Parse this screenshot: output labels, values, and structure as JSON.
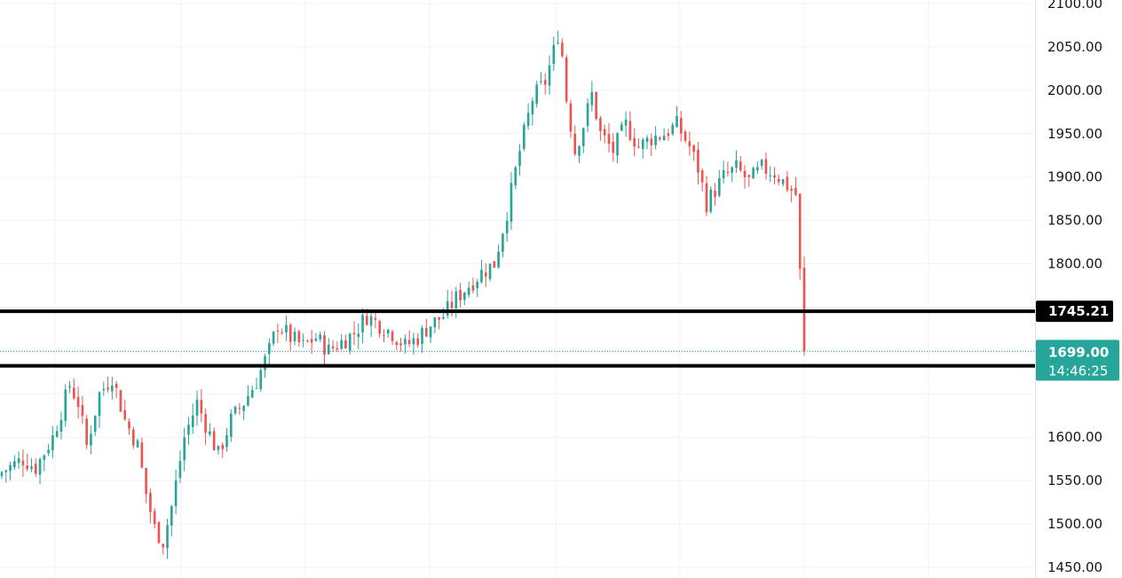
{
  "chart_data": {
    "type": "candlestick",
    "title": "",
    "xlabel": "",
    "ylabel": "",
    "ylim": [
      1440,
      2105
    ],
    "y_ticks": [
      "2100.00",
      "2050.00",
      "2000.00",
      "1950.00",
      "1900.00",
      "1850.00",
      "1800.00",
      "1600.00",
      "1550.00",
      "1500.00",
      "1450.00"
    ],
    "y_tick_values": [
      2100,
      2050,
      2000,
      1950,
      1900,
      1850,
      1800,
      1600,
      1550,
      1500,
      1450
    ],
    "grid": true,
    "candle_count": 190,
    "close_path": [
      [
        0,
        1560
      ],
      [
        5,
        1575
      ],
      [
        8,
        1565
      ],
      [
        12,
        1600
      ],
      [
        16,
        1660
      ],
      [
        18,
        1640
      ],
      [
        20,
        1590
      ],
      [
        23,
        1650
      ],
      [
        26,
        1670
      ],
      [
        29,
        1620
      ],
      [
        32,
        1590
      ],
      [
        34,
        1535
      ],
      [
        36,
        1495
      ],
      [
        38,
        1480
      ],
      [
        40,
        1520
      ],
      [
        43,
        1600
      ],
      [
        46,
        1640
      ],
      [
        48,
        1615
      ],
      [
        51,
        1580
      ],
      [
        54,
        1620
      ],
      [
        57,
        1640
      ],
      [
        60,
        1665
      ],
      [
        63,
        1700
      ],
      [
        65,
        1730
      ],
      [
        68,
        1715
      ],
      [
        71,
        1705
      ],
      [
        74,
        1715
      ],
      [
        77,
        1700
      ],
      [
        80,
        1710
      ],
      [
        83,
        1720
      ],
      [
        86,
        1740
      ],
      [
        89,
        1730
      ],
      [
        92,
        1720
      ],
      [
        95,
        1705
      ],
      [
        98,
        1715
      ],
      [
        101,
        1730
      ],
      [
        104,
        1740
      ],
      [
        107,
        1760
      ],
      [
        110,
        1775
      ],
      [
        113,
        1790
      ],
      [
        116,
        1800
      ],
      [
        119,
        1860
      ],
      [
        122,
        1930
      ],
      [
        125,
        1990
      ],
      [
        128,
        2010
      ],
      [
        130,
        2045
      ],
      [
        131,
        2065
      ],
      [
        132,
        2040
      ],
      [
        133,
        1990
      ],
      [
        135,
        1930
      ],
      [
        137,
        1960
      ],
      [
        139,
        1995
      ],
      [
        141,
        1950
      ],
      [
        144,
        1930
      ],
      [
        147,
        1960
      ],
      [
        150,
        1935
      ],
      [
        153,
        1945
      ],
      [
        156,
        1950
      ],
      [
        159,
        1960
      ],
      [
        162,
        1935
      ],
      [
        164,
        1910
      ],
      [
        166,
        1870
      ],
      [
        168,
        1885
      ],
      [
        170,
        1900
      ],
      [
        173,
        1910
      ],
      [
        176,
        1895
      ],
      [
        179,
        1910
      ],
      [
        182,
        1905
      ],
      [
        185,
        1890
      ],
      [
        187,
        1880
      ],
      [
        189,
        1699
      ]
    ],
    "price_lines": [
      {
        "value": 1745.21,
        "label": "1745.21",
        "color": "#000000"
      },
      {
        "value": 1682.43,
        "label": "1682.43",
        "color": "#000000"
      }
    ],
    "last_price": {
      "value": 1699.0,
      "label": "1699.00",
      "countdown": "14:46:25",
      "color": "#26a69a"
    },
    "up_color": "#26a69a",
    "down_color": "#ef5350",
    "grid_color": "#f0f3fa",
    "axis_border_color": "#e0e3eb"
  }
}
